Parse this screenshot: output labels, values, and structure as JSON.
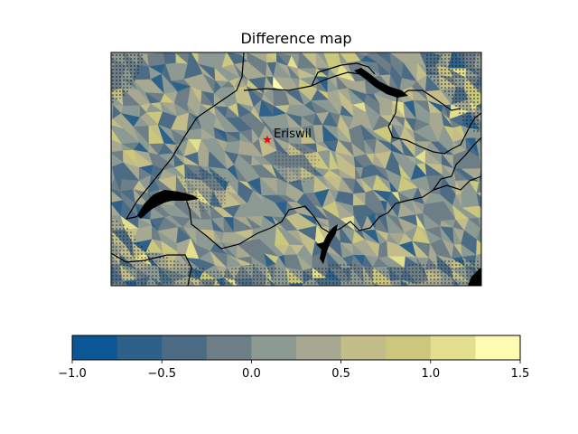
{
  "figure": {
    "title": "Difference map"
  },
  "map": {
    "marker": {
      "label": "Eriswil",
      "symbol": "star",
      "color": "#ff0000"
    },
    "border_color": "#000000",
    "lake_color": "#000000",
    "stipple_color": "#111111"
  },
  "colorbar": {
    "orientation": "horizontal",
    "min": -1.0,
    "max": 1.5,
    "step": 0.25,
    "bins": [
      {
        "from": -1.0,
        "to": -0.75,
        "color": "#0b5795"
      },
      {
        "from": -0.75,
        "to": -0.5,
        "color": "#2d6189"
      },
      {
        "from": -0.5,
        "to": -0.25,
        "color": "#4b6c84"
      },
      {
        "from": -0.25,
        "to": 0.0,
        "color": "#6d7e86"
      },
      {
        "from": 0.0,
        "to": 0.25,
        "color": "#8c9a93"
      },
      {
        "from": 0.25,
        "to": 0.5,
        "color": "#a7a891"
      },
      {
        "from": 0.5,
        "to": 0.75,
        "color": "#c3bd8a"
      },
      {
        "from": 0.75,
        "to": 1.0,
        "color": "#cbc77c"
      },
      {
        "from": 1.0,
        "to": 1.25,
        "color": "#e3df8e"
      },
      {
        "from": 1.25,
        "to": 1.5,
        "color": "#fcfbb1"
      }
    ],
    "ticks": [
      "−1.0",
      "−0.5",
      "0.0",
      "0.5",
      "1.0",
      "1.5"
    ]
  }
}
